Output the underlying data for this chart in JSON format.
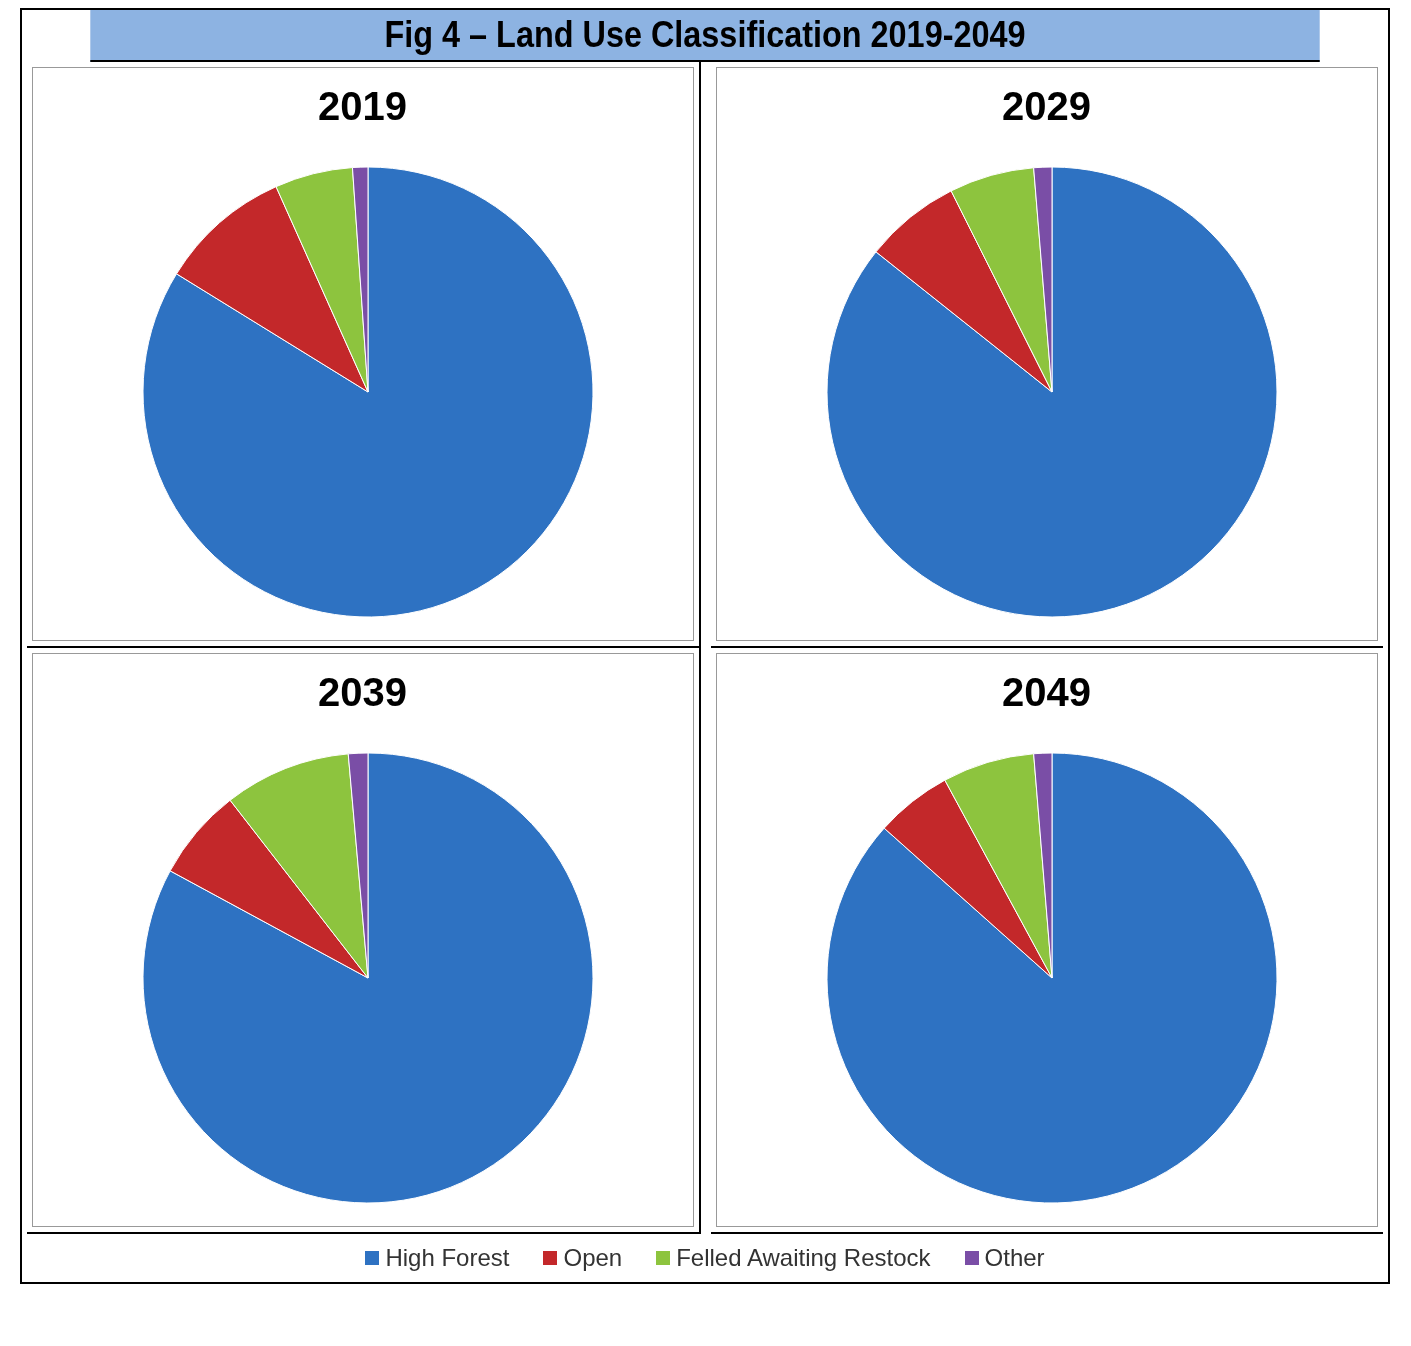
{
  "chart_data": [
    {
      "type": "pie",
      "title": "2019",
      "annotations": [
        "Fig 4 – Land Use Classification 2019-2049"
      ],
      "categories": [
        "High Forest",
        "Open",
        "Felled Awaiting Restock",
        "Other"
      ],
      "values": [
        83.8,
        9.5,
        5.6,
        1.1
      ],
      "colors": [
        "#2e72c2",
        "#c3282a",
        "#8dc43e",
        "#7a4ea6"
      ],
      "legend": "bottom"
    },
    {
      "type": "pie",
      "title": "2029",
      "categories": [
        null,
        null,
        null,
        null
      ],
      "values": [
        85.7,
        6.9,
        6.1,
        1.3
      ],
      "colors": [
        "#2e72c2",
        "#c3282a",
        "#8dc43e",
        "#7a4ea6"
      ]
    },
    {
      "type": "pie",
      "title": "2039",
      "categories": [
        null,
        null,
        null,
        null
      ],
      "values": [
        82.9,
        6.6,
        9.1,
        1.4
      ],
      "colors": [
        "#2e72c2",
        "#c3282a",
        "#8dc43e",
        "#7a4ea6"
      ]
    },
    {
      "type": "pie",
      "title": "2049",
      "categories": [
        null,
        null,
        null,
        null
      ],
      "values": [
        86.6,
        5.5,
        6.6,
        1.3
      ],
      "colors": [
        "#2e72c2",
        "#c3282a",
        "#8dc43e",
        "#7a4ea6"
      ]
    }
  ]
}
